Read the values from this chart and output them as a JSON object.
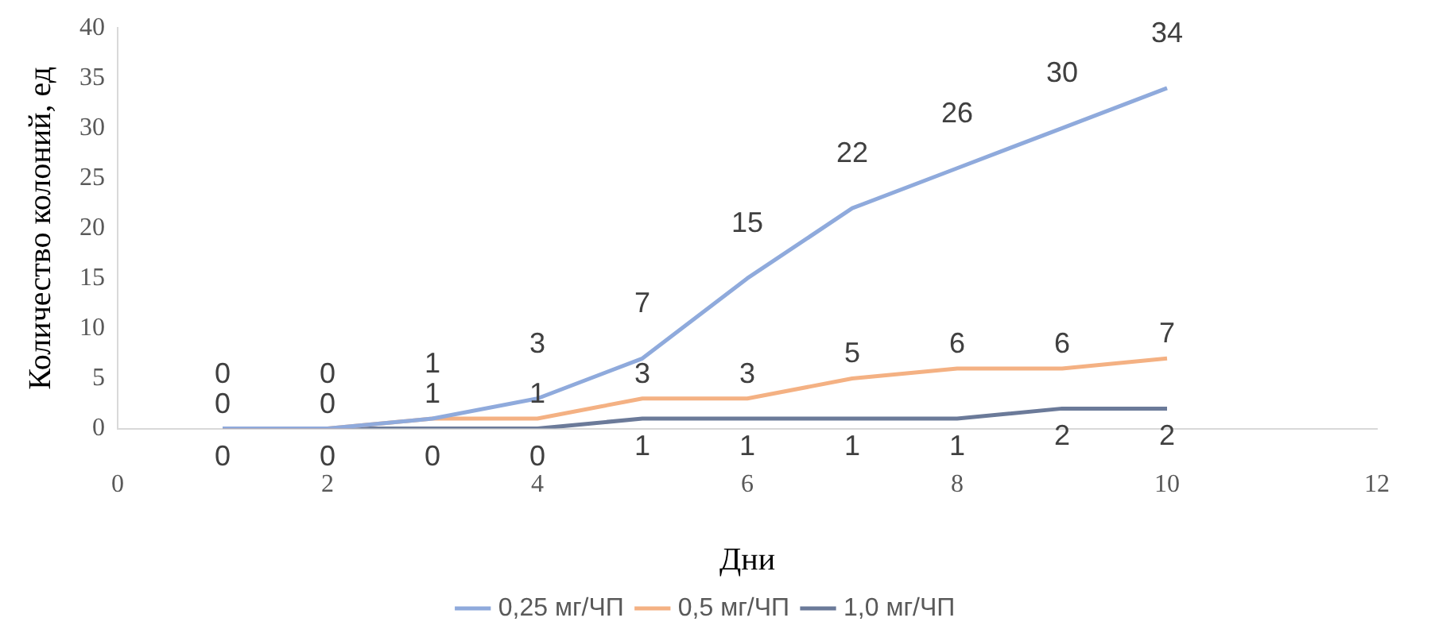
{
  "chart_data": {
    "type": "line",
    "xlabel": "Дни",
    "ylabel": "Количество колоний, ед",
    "x": [
      1,
      2,
      3,
      4,
      5,
      6,
      7,
      8,
      9,
      10
    ],
    "xlim": [
      0,
      12
    ],
    "xticks": [
      0,
      2,
      4,
      6,
      8,
      10,
      12
    ],
    "ylim": [
      0,
      40
    ],
    "yticks": [
      0,
      5,
      10,
      15,
      20,
      25,
      30,
      35,
      40
    ],
    "series": [
      {
        "name": "0,25 мг/ЧП",
        "color": "#8faadc",
        "values": [
          0,
          0,
          1,
          3,
          7,
          15,
          22,
          26,
          30,
          34
        ]
      },
      {
        "name": "0,5 мг/ЧП",
        "color": "#f4b183",
        "values": [
          0,
          0,
          1,
          1,
          3,
          3,
          5,
          6,
          6,
          7
        ]
      },
      {
        "name": "1,0 мг/ЧП",
        "color": "#6b7a99",
        "values": [
          0,
          0,
          0,
          0,
          1,
          1,
          1,
          1,
          2,
          2
        ]
      }
    ],
    "data_labels": true,
    "legend": "bottom",
    "grid": false
  }
}
